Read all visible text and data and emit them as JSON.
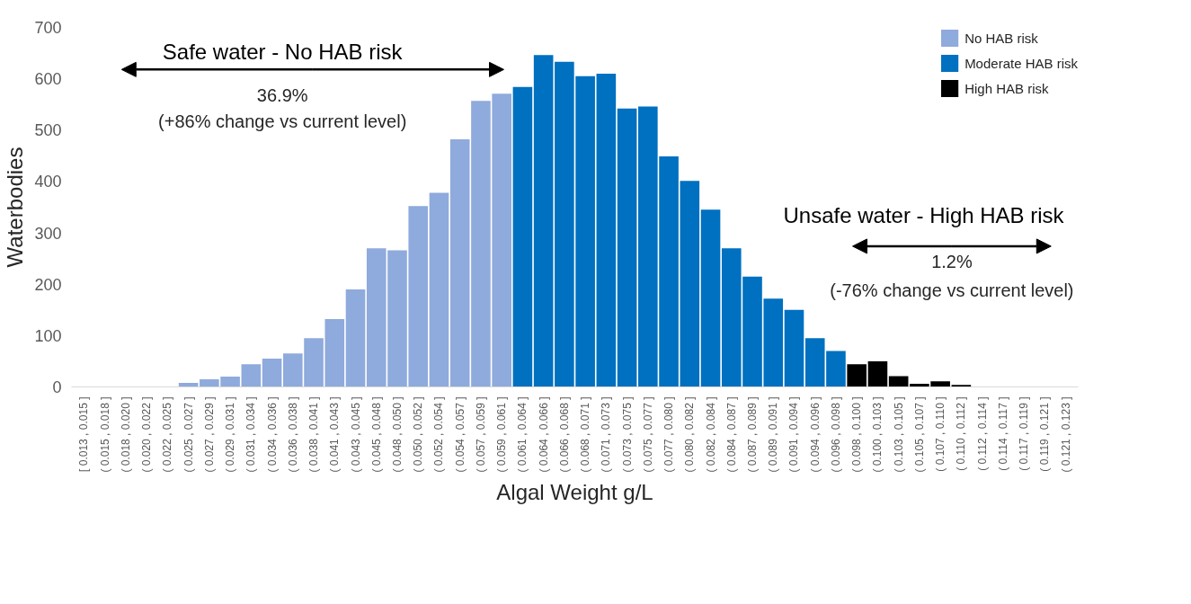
{
  "chart_data": {
    "type": "bar",
    "xlabel": "Algal Weight g/L",
    "ylabel": "Waterbodies",
    "categories": [
      "[ 0.013 , 0.015 ]",
      "( 0.015 , 0.018 ]",
      "( 0.018 , 0.020 ]",
      "( 0.020 , 0.022 ]",
      "( 0.022 , 0.025 ]",
      "( 0.025 , 0.027 ]",
      "( 0.027 , 0.029 ]",
      "( 0.029 , 0.031 ]",
      "( 0.031 , 0.034 ]",
      "( 0.034 , 0.036 ]",
      "( 0.036 , 0.038 ]",
      "( 0.038 , 0.041 ]",
      "( 0.041 , 0.043 ]",
      "( 0.043 , 0.045 ]",
      "( 0.045 , 0.048 ]",
      "( 0.048 , 0.050 ]",
      "( 0.050 , 0.052 ]",
      "( 0.052 , 0.054 ]",
      "( 0.054 , 0.057 ]",
      "( 0.057 , 0.059 ]",
      "( 0.059 , 0.061 ]",
      "( 0.061 , 0.064 ]",
      "( 0.064 , 0.066 ]",
      "( 0.066 , 0.068 ]",
      "( 0.068 , 0.071 ]",
      "( 0.071 , 0.073 ]",
      "( 0.073 , 0.075 ]",
      "( 0.075 , 0.077 ]",
      "( 0.077 , 0.080 ]",
      "( 0.080 , 0.082 ]",
      "( 0.082 , 0.084 ]",
      "( 0.084 , 0.087 ]",
      "( 0.087 , 0.089 ]",
      "( 0.089 , 0.091 ]",
      "( 0.091 , 0.094 ]",
      "( 0.094 , 0.096 ]",
      "( 0.096 , 0.098 ]",
      "( 0.098 , 0.100 ]",
      "( 0.100 , 0.103 ]",
      "( 0.103 , 0.105 ]",
      "( 0.105 , 0.107 ]",
      "( 0.107 , 0.110 ]",
      "( 0.110 , 0.112 ]",
      "( 0.112 , 0.114 ]",
      "( 0.114 , 0.117 ]",
      "( 0.117 , 0.119 ]",
      "( 0.119 , 0.121 ]",
      "( 0.121 , 0.123 ]"
    ],
    "series": [
      {
        "name": "No HAB risk",
        "color": "#8faadc",
        "values": [
          0,
          0,
          0,
          0,
          0,
          8,
          15,
          20,
          44,
          55,
          65,
          95,
          132,
          190,
          270,
          266,
          352,
          378,
          482,
          557,
          571,
          null,
          null,
          null,
          null,
          null,
          null,
          null,
          null,
          null,
          null,
          null,
          null,
          null,
          null,
          null,
          null,
          null,
          null,
          null,
          null,
          null,
          null,
          null,
          null,
          null,
          null,
          null
        ]
      },
      {
        "name": "Moderate HAB risk",
        "color": "#0070c0",
        "values": [
          null,
          null,
          null,
          null,
          null,
          null,
          null,
          null,
          null,
          null,
          null,
          null,
          null,
          null,
          null,
          null,
          null,
          null,
          null,
          null,
          null,
          584,
          646,
          633,
          605,
          610,
          542,
          546,
          449,
          401,
          345,
          270,
          215,
          172,
          150,
          95,
          70,
          null,
          null,
          null,
          null,
          null,
          null,
          null,
          null,
          null,
          null,
          null
        ]
      },
      {
        "name": "High HAB risk",
        "color": "#000000",
        "values": [
          null,
          null,
          null,
          null,
          null,
          null,
          null,
          null,
          null,
          null,
          null,
          null,
          null,
          null,
          null,
          null,
          null,
          null,
          null,
          null,
          null,
          null,
          null,
          null,
          null,
          null,
          null,
          null,
          null,
          null,
          null,
          null,
          null,
          null,
          null,
          null,
          null,
          44,
          50,
          21,
          6,
          11,
          4,
          0,
          0,
          0,
          0,
          0
        ]
      }
    ],
    "ylim": [
      0,
      700
    ],
    "yticks": [
      0,
      100,
      200,
      300,
      400,
      500,
      600,
      700
    ],
    "legend": "top right",
    "annotations": [
      "Safe water - No HAB risk",
      "36.9%",
      "(+86% change vs current level)",
      "Unsafe water - High HAB risk",
      "1.2%",
      "(-76% change vs current level)"
    ]
  }
}
